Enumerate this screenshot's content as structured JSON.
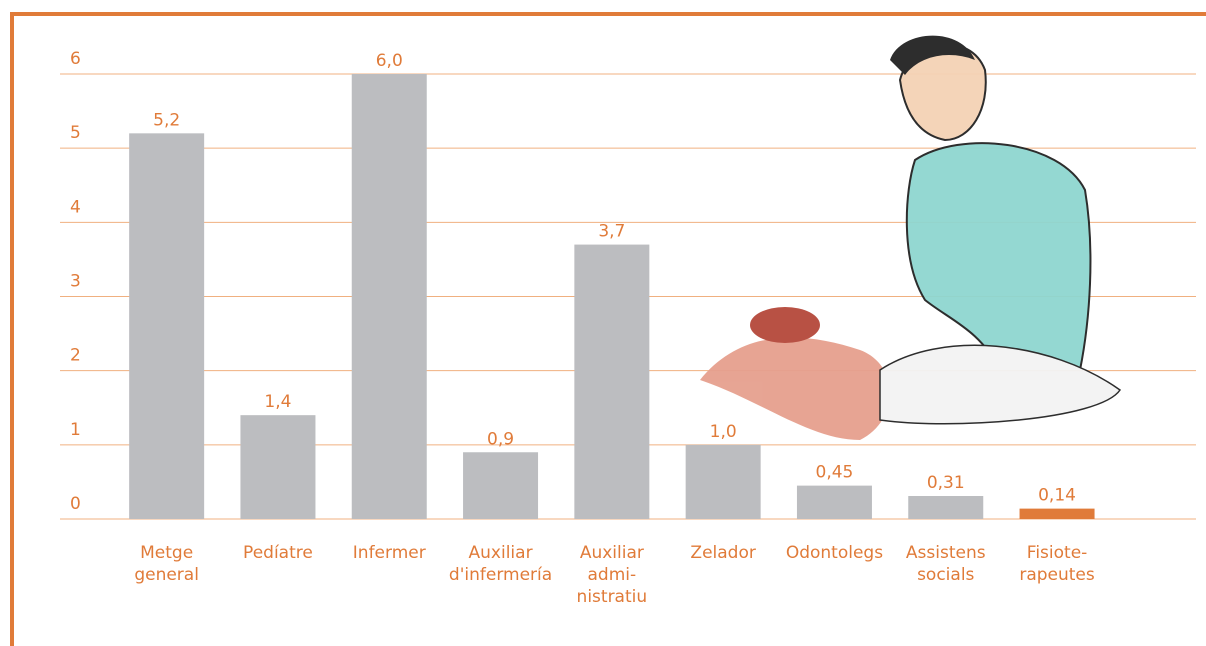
{
  "chart_data": {
    "type": "bar",
    "categories": [
      [
        "Metge",
        "general"
      ],
      [
        "Pedíatre"
      ],
      [
        "Infermer"
      ],
      [
        "Auxiliar",
        "d'infermería"
      ],
      [
        "Auxiliar",
        "admi-",
        "nistratiu"
      ],
      [
        "Zelador"
      ],
      [
        "Odontolegs"
      ],
      [
        "Assistens",
        "socials"
      ],
      [
        "Fisiote-",
        "rapeutes"
      ]
    ],
    "values": [
      5.2,
      1.4,
      6.0,
      0.9,
      3.7,
      1.0,
      0.45,
      0.31,
      0.14
    ],
    "value_labels": [
      "5,2",
      "1,4",
      "6,0",
      "0,9",
      "3,7",
      "1,0",
      "0,45",
      "0,31",
      "0,14"
    ],
    "colors": [
      "#bcbdc0",
      "#bcbdc0",
      "#bcbdc0",
      "#bcbdc0",
      "#bcbdc0",
      "#bcbdc0",
      "#bcbdc0",
      "#bcbdc0",
      "#e07b39"
    ],
    "ylim": [
      0,
      6
    ],
    "yticks": [
      0,
      1,
      2,
      3,
      4,
      5,
      6
    ],
    "grid": true
  }
}
